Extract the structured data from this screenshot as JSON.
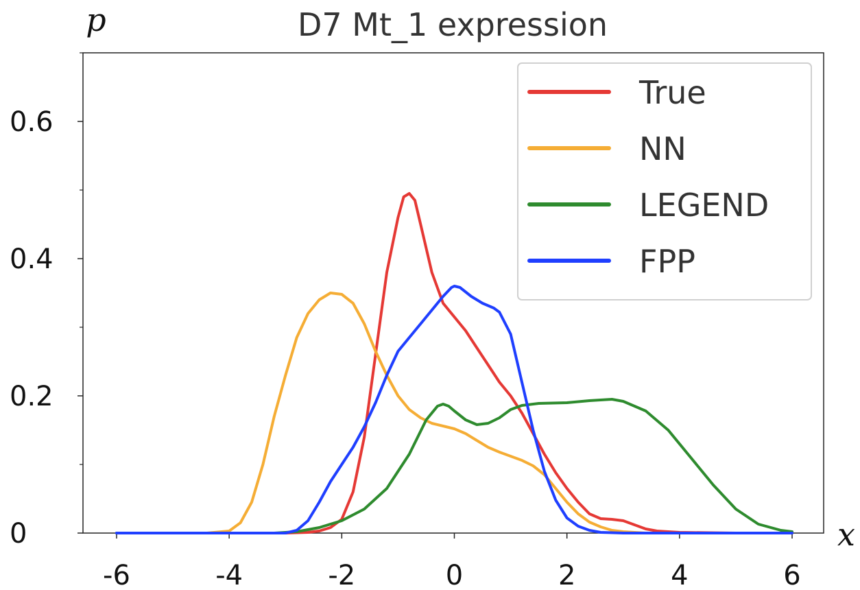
{
  "chart_data": {
    "type": "line",
    "title": "D7 Mt_1 expression",
    "xlabel": "x",
    "ylabel": "p",
    "xlim": [
      -6.2,
      6.5
    ],
    "ylim": [
      0,
      0.7
    ],
    "x_ticks": [
      -6,
      -4,
      -2,
      0,
      2,
      4,
      6
    ],
    "x_tick_labels": [
      "-6",
      "-4",
      "-2",
      "0",
      "2",
      "4",
      "6"
    ],
    "y_ticks": [
      0,
      0.2,
      0.4,
      0.6
    ],
    "y_tick_labels": [
      "0",
      "0.2",
      "0.4",
      "0.6"
    ],
    "y_minor_ticks": [
      0.1,
      0.3,
      0.5,
      0.7
    ],
    "grid": false,
    "legend_position": "top-right",
    "series": [
      {
        "name": "True",
        "color": "#e53935",
        "points": [
          [
            -6,
            0
          ],
          [
            -4,
            0
          ],
          [
            -3,
            0
          ],
          [
            -2.6,
            0.001
          ],
          [
            -2.4,
            0.003
          ],
          [
            -2.2,
            0.008
          ],
          [
            -2,
            0.02
          ],
          [
            -1.8,
            0.06
          ],
          [
            -1.6,
            0.14
          ],
          [
            -1.4,
            0.26
          ],
          [
            -1.2,
            0.38
          ],
          [
            -1,
            0.46
          ],
          [
            -0.9,
            0.49
          ],
          [
            -0.8,
            0.495
          ],
          [
            -0.7,
            0.485
          ],
          [
            -0.6,
            0.45
          ],
          [
            -0.4,
            0.38
          ],
          [
            -0.2,
            0.335
          ],
          [
            0,
            0.315
          ],
          [
            0.2,
            0.295
          ],
          [
            0.4,
            0.27
          ],
          [
            0.6,
            0.245
          ],
          [
            0.8,
            0.22
          ],
          [
            1,
            0.2
          ],
          [
            1.2,
            0.175
          ],
          [
            1.4,
            0.145
          ],
          [
            1.6,
            0.115
          ],
          [
            1.8,
            0.088
          ],
          [
            2,
            0.065
          ],
          [
            2.2,
            0.045
          ],
          [
            2.4,
            0.028
          ],
          [
            2.6,
            0.021
          ],
          [
            2.8,
            0.02
          ],
          [
            3,
            0.018
          ],
          [
            3.2,
            0.012
          ],
          [
            3.4,
            0.006
          ],
          [
            3.6,
            0.003
          ],
          [
            4,
            0.001
          ],
          [
            5,
            0
          ],
          [
            6,
            0
          ]
        ]
      },
      {
        "name": "NN",
        "color": "#f5ad35",
        "points": [
          [
            -6,
            0
          ],
          [
            -4.4,
            0
          ],
          [
            -4,
            0.003
          ],
          [
            -3.8,
            0.015
          ],
          [
            -3.6,
            0.045
          ],
          [
            -3.4,
            0.1
          ],
          [
            -3.2,
            0.17
          ],
          [
            -3,
            0.23
          ],
          [
            -2.8,
            0.285
          ],
          [
            -2.6,
            0.32
          ],
          [
            -2.4,
            0.34
          ],
          [
            -2.2,
            0.35
          ],
          [
            -2,
            0.348
          ],
          [
            -1.8,
            0.335
          ],
          [
            -1.6,
            0.305
          ],
          [
            -1.4,
            0.265
          ],
          [
            -1.2,
            0.23
          ],
          [
            -1,
            0.2
          ],
          [
            -0.8,
            0.18
          ],
          [
            -0.6,
            0.168
          ],
          [
            -0.4,
            0.16
          ],
          [
            -0.2,
            0.156
          ],
          [
            0,
            0.152
          ],
          [
            0.2,
            0.145
          ],
          [
            0.4,
            0.135
          ],
          [
            0.6,
            0.125
          ],
          [
            0.8,
            0.118
          ],
          [
            1,
            0.112
          ],
          [
            1.2,
            0.106
          ],
          [
            1.4,
            0.098
          ],
          [
            1.6,
            0.085
          ],
          [
            1.8,
            0.065
          ],
          [
            2,
            0.045
          ],
          [
            2.2,
            0.028
          ],
          [
            2.4,
            0.016
          ],
          [
            2.6,
            0.009
          ],
          [
            2.8,
            0.004
          ],
          [
            3,
            0.002
          ],
          [
            3.4,
            0
          ],
          [
            6,
            0
          ]
        ]
      },
      {
        "name": "LEGEND",
        "color": "#2e8b2e",
        "points": [
          [
            -6,
            0
          ],
          [
            -3.2,
            0
          ],
          [
            -2.8,
            0.002
          ],
          [
            -2.4,
            0.008
          ],
          [
            -2,
            0.018
          ],
          [
            -1.6,
            0.035
          ],
          [
            -1.2,
            0.065
          ],
          [
            -0.8,
            0.115
          ],
          [
            -0.5,
            0.165
          ],
          [
            -0.3,
            0.185
          ],
          [
            -0.2,
            0.188
          ],
          [
            -0.1,
            0.185
          ],
          [
            0,
            0.178
          ],
          [
            0.2,
            0.165
          ],
          [
            0.4,
            0.158
          ],
          [
            0.6,
            0.16
          ],
          [
            0.8,
            0.168
          ],
          [
            1,
            0.18
          ],
          [
            1.2,
            0.186
          ],
          [
            1.5,
            0.189
          ],
          [
            2,
            0.19
          ],
          [
            2.4,
            0.193
          ],
          [
            2.8,
            0.195
          ],
          [
            3,
            0.192
          ],
          [
            3.4,
            0.178
          ],
          [
            3.8,
            0.15
          ],
          [
            4.2,
            0.11
          ],
          [
            4.6,
            0.07
          ],
          [
            5,
            0.035
          ],
          [
            5.4,
            0.013
          ],
          [
            5.8,
            0.004
          ],
          [
            6,
            0.002
          ]
        ]
      },
      {
        "name": "FPP",
        "color": "#1f3fff",
        "points": [
          [
            -6,
            0
          ],
          [
            -3,
            0
          ],
          [
            -2.8,
            0.004
          ],
          [
            -2.6,
            0.018
          ],
          [
            -2.4,
            0.045
          ],
          [
            -2.2,
            0.075
          ],
          [
            -2,
            0.1
          ],
          [
            -1.8,
            0.125
          ],
          [
            -1.6,
            0.155
          ],
          [
            -1.4,
            0.19
          ],
          [
            -1.2,
            0.23
          ],
          [
            -1,
            0.265
          ],
          [
            -0.8,
            0.285
          ],
          [
            -0.6,
            0.305
          ],
          [
            -0.4,
            0.325
          ],
          [
            -0.2,
            0.345
          ],
          [
            -0.05,
            0.358
          ],
          [
            0,
            0.36
          ],
          [
            0.1,
            0.358
          ],
          [
            0.3,
            0.345
          ],
          [
            0.5,
            0.335
          ],
          [
            0.7,
            0.328
          ],
          [
            0.8,
            0.322
          ],
          [
            1,
            0.29
          ],
          [
            1.2,
            0.22
          ],
          [
            1.4,
            0.15
          ],
          [
            1.6,
            0.09
          ],
          [
            1.8,
            0.048
          ],
          [
            2,
            0.022
          ],
          [
            2.2,
            0.01
          ],
          [
            2.4,
            0.004
          ],
          [
            2.6,
            0.001
          ],
          [
            3,
            0
          ],
          [
            6,
            0
          ]
        ]
      }
    ]
  }
}
